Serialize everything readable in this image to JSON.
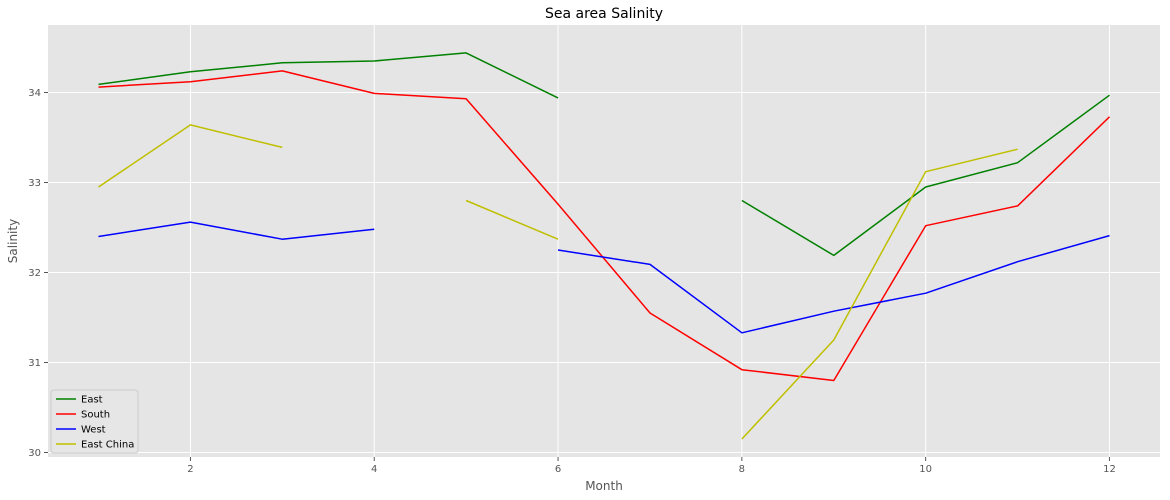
{
  "chart_data": {
    "type": "line",
    "title": "Sea area Salinity",
    "xlabel": "Month",
    "ylabel": "Salinity",
    "xlim": [
      0.45,
      12.55
    ],
    "ylim": [
      29.95,
      34.75
    ],
    "xticks": [
      2,
      4,
      6,
      8,
      10,
      12
    ],
    "yticks": [
      30,
      31,
      32,
      33,
      34
    ],
    "grid": true,
    "legend_position": "lower-left",
    "background_color": "#e5e5e5",
    "grid_color": "#ffffff",
    "series": [
      {
        "name": "East",
        "color": "#008000",
        "points": [
          [
            1,
            34.09
          ],
          [
            2,
            34.23
          ],
          [
            3,
            34.33
          ],
          [
            4,
            34.35
          ],
          [
            5,
            34.44
          ],
          [
            6,
            33.94
          ],
          [
            8,
            32.8
          ],
          [
            9,
            32.19
          ],
          [
            10,
            32.95
          ],
          [
            11,
            33.22
          ],
          [
            12,
            33.97
          ]
        ]
      },
      {
        "name": "South",
        "color": "#ff0000",
        "points": [
          [
            1,
            34.06
          ],
          [
            2,
            34.12
          ],
          [
            3,
            34.24
          ],
          [
            4,
            33.99
          ],
          [
            5,
            33.93
          ],
          [
            6,
            32.76
          ],
          [
            7,
            31.55
          ],
          [
            8,
            30.92
          ],
          [
            9,
            30.8
          ],
          [
            10,
            32.52
          ],
          [
            11,
            32.74
          ],
          [
            12,
            33.73
          ]
        ]
      },
      {
        "name": "West",
        "color": "#0000ff",
        "points": [
          [
            1,
            32.4
          ],
          [
            2,
            32.56
          ],
          [
            3,
            32.37
          ],
          [
            4,
            32.48
          ],
          [
            6,
            32.25
          ],
          [
            7,
            32.09
          ],
          [
            8,
            31.33
          ],
          [
            9,
            31.57
          ],
          [
            10,
            31.77
          ],
          [
            11,
            32.12
          ],
          [
            12,
            32.41
          ]
        ]
      },
      {
        "name": "East China",
        "color": "#bfbf00",
        "points": [
          [
            1,
            32.95
          ],
          [
            2,
            33.64
          ],
          [
            3,
            33.39
          ],
          [
            5,
            32.8
          ],
          [
            6,
            32.37
          ],
          [
            8,
            30.15
          ],
          [
            9,
            31.25
          ],
          [
            10,
            33.12
          ],
          [
            11,
            33.37
          ]
        ]
      }
    ]
  }
}
